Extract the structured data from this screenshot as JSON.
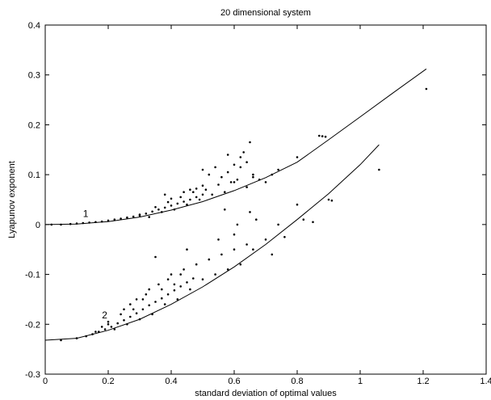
{
  "chart_data": {
    "type": "scatter",
    "title": "20 dimensional system",
    "xlabel": "standard deviation of optimal values",
    "ylabel": "Lyapunov exponent",
    "xlim": [
      0,
      1.4
    ],
    "ylim": [
      -0.3,
      0.4
    ],
    "xticks": [
      0,
      0.2,
      0.4,
      0.6,
      0.8,
      1,
      1.2,
      1.4
    ],
    "xtick_labels": [
      "0",
      "0.2",
      "0.4",
      "0.6",
      "0.8",
      "1",
      "1.2",
      "1.4"
    ],
    "yticks": [
      -0.3,
      -0.2,
      -0.1,
      0,
      0.1,
      0.2,
      0.3,
      0.4
    ],
    "ytick_labels": [
      "-0.3",
      "-0.2",
      "-0.1",
      "0",
      "0.1",
      "0.2",
      "0.3",
      "0.4"
    ],
    "grid": false,
    "annotations": [
      {
        "text": "1",
        "x": 0.12,
        "y": 0.015
      },
      {
        "text": "2",
        "x": 0.18,
        "y": -0.188
      }
    ],
    "curves": [
      {
        "label": "1",
        "x": [
          0,
          0.1,
          0.2,
          0.3,
          0.4,
          0.5,
          0.6,
          0.7,
          0.8,
          0.9,
          1.0,
          1.1,
          1.21
        ],
        "y": [
          0.0,
          0.001,
          0.006,
          0.015,
          0.029,
          0.046,
          0.068,
          0.094,
          0.125,
          0.17,
          0.216,
          0.262,
          0.312
        ]
      },
      {
        "label": "2",
        "x": [
          0,
          0.1,
          0.2,
          0.3,
          0.4,
          0.5,
          0.6,
          0.7,
          0.8,
          0.9,
          1.0,
          1.06
        ],
        "y": [
          -0.232,
          -0.228,
          -0.212,
          -0.19,
          -0.16,
          -0.125,
          -0.085,
          -0.04,
          0.01,
          0.062,
          0.12,
          0.16
        ]
      }
    ],
    "scatter_points": [
      [
        0.02,
        0.0
      ],
      [
        0.05,
        0.0
      ],
      [
        0.08,
        0.001
      ],
      [
        0.1,
        0.002
      ],
      [
        0.12,
        0.003
      ],
      [
        0.14,
        0.004
      ],
      [
        0.16,
        0.005
      ],
      [
        0.18,
        0.006
      ],
      [
        0.2,
        0.008
      ],
      [
        0.22,
        0.01
      ],
      [
        0.24,
        0.012
      ],
      [
        0.26,
        0.014
      ],
      [
        0.28,
        0.016
      ],
      [
        0.3,
        0.018
      ],
      [
        0.32,
        0.022
      ],
      [
        0.34,
        0.026
      ],
      [
        0.36,
        0.03
      ],
      [
        0.38,
        0.034
      ],
      [
        0.4,
        0.038
      ],
      [
        0.42,
        0.042
      ],
      [
        0.44,
        0.046
      ],
      [
        0.46,
        0.05
      ],
      [
        0.48,
        0.055
      ],
      [
        0.5,
        0.06
      ],
      [
        0.3,
        0.02
      ],
      [
        0.33,
        0.015
      ],
      [
        0.35,
        0.035
      ],
      [
        0.37,
        0.025
      ],
      [
        0.39,
        0.045
      ],
      [
        0.41,
        0.03
      ],
      [
        0.43,
        0.055
      ],
      [
        0.45,
        0.04
      ],
      [
        0.47,
        0.065
      ],
      [
        0.49,
        0.05
      ],
      [
        0.51,
        0.07
      ],
      [
        0.53,
        0.06
      ],
      [
        0.55,
        0.08
      ],
      [
        0.57,
        0.065
      ],
      [
        0.59,
        0.085
      ],
      [
        0.61,
        0.09
      ],
      [
        0.5,
        0.11
      ],
      [
        0.52,
        0.1
      ],
      [
        0.54,
        0.115
      ],
      [
        0.56,
        0.095
      ],
      [
        0.58,
        0.105
      ],
      [
        0.6,
        0.12
      ],
      [
        0.62,
        0.135
      ],
      [
        0.64,
        0.125
      ],
      [
        0.66,
        0.1
      ],
      [
        0.68,
        0.09
      ],
      [
        0.7,
        0.085
      ],
      [
        0.72,
        0.1
      ],
      [
        0.74,
        0.11
      ],
      [
        0.62,
        0.115
      ],
      [
        0.65,
        0.165
      ],
      [
        0.63,
        0.145
      ],
      [
        0.58,
        0.14
      ],
      [
        0.6,
        0.085
      ],
      [
        0.64,
        0.075
      ],
      [
        0.66,
        0.095
      ],
      [
        0.8,
        0.135
      ],
      [
        0.87,
        0.178
      ],
      [
        0.88,
        0.177
      ],
      [
        0.89,
        0.176
      ],
      [
        1.21,
        0.272
      ],
      [
        0.38,
        0.06
      ],
      [
        0.4,
        0.052
      ],
      [
        0.44,
        0.065
      ],
      [
        0.46,
        0.07
      ],
      [
        0.48,
        0.072
      ],
      [
        0.5,
        0.078
      ],
      [
        0.05,
        -0.232
      ],
      [
        0.1,
        -0.228
      ],
      [
        0.13,
        -0.224
      ],
      [
        0.15,
        -0.22
      ],
      [
        0.17,
        -0.215
      ],
      [
        0.19,
        -0.21
      ],
      [
        0.21,
        -0.205
      ],
      [
        0.23,
        -0.198
      ],
      [
        0.25,
        -0.192
      ],
      [
        0.27,
        -0.185
      ],
      [
        0.29,
        -0.178
      ],
      [
        0.31,
        -0.17
      ],
      [
        0.33,
        -0.162
      ],
      [
        0.35,
        -0.155
      ],
      [
        0.37,
        -0.148
      ],
      [
        0.39,
        -0.14
      ],
      [
        0.41,
        -0.132
      ],
      [
        0.43,
        -0.124
      ],
      [
        0.45,
        -0.116
      ],
      [
        0.47,
        -0.108
      ],
      [
        0.2,
        -0.2
      ],
      [
        0.22,
        -0.21
      ],
      [
        0.24,
        -0.18
      ],
      [
        0.26,
        -0.2
      ],
      [
        0.28,
        -0.17
      ],
      [
        0.3,
        -0.19
      ],
      [
        0.32,
        -0.14
      ],
      [
        0.34,
        -0.18
      ],
      [
        0.36,
        -0.12
      ],
      [
        0.38,
        -0.16
      ],
      [
        0.4,
        -0.1
      ],
      [
        0.42,
        -0.15
      ],
      [
        0.44,
        -0.09
      ],
      [
        0.46,
        -0.13
      ],
      [
        0.48,
        -0.08
      ],
      [
        0.5,
        -0.11
      ],
      [
        0.52,
        -0.07
      ],
      [
        0.54,
        -0.1
      ],
      [
        0.56,
        -0.06
      ],
      [
        0.58,
        -0.09
      ],
      [
        0.6,
        -0.05
      ],
      [
        0.62,
        -0.08
      ],
      [
        0.64,
        -0.04
      ],
      [
        0.66,
        -0.05
      ],
      [
        0.35,
        -0.065
      ],
      [
        0.45,
        -0.05
      ],
      [
        0.55,
        -0.03
      ],
      [
        0.6,
        -0.02
      ],
      [
        0.65,
        0.025
      ],
      [
        0.67,
        0.01
      ],
      [
        0.57,
        0.03
      ],
      [
        0.61,
        0.0
      ],
      [
        0.7,
        -0.03
      ],
      [
        0.72,
        -0.06
      ],
      [
        0.74,
        0.0
      ],
      [
        0.76,
        -0.025
      ],
      [
        0.8,
        0.04
      ],
      [
        0.82,
        0.01
      ],
      [
        0.85,
        0.005
      ],
      [
        0.9,
        0.05
      ],
      [
        0.91,
        0.048
      ],
      [
        1.06,
        0.11
      ],
      [
        0.2,
        -0.195
      ],
      [
        0.18,
        -0.205
      ],
      [
        0.16,
        -0.215
      ],
      [
        0.25,
        -0.17
      ],
      [
        0.27,
        -0.16
      ],
      [
        0.29,
        -0.15
      ],
      [
        0.31,
        -0.15
      ],
      [
        0.33,
        -0.13
      ],
      [
        0.37,
        -0.13
      ],
      [
        0.39,
        -0.11
      ],
      [
        0.41,
        -0.12
      ],
      [
        0.43,
        -0.1
      ]
    ]
  }
}
